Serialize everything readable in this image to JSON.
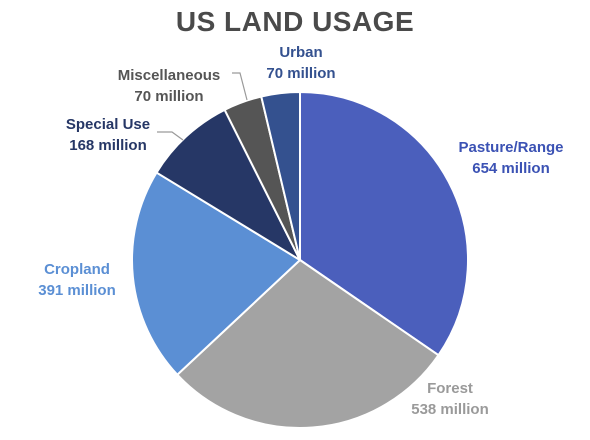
{
  "chart_data": {
    "type": "pie",
    "title": "US LAND USAGE",
    "slices": [
      {
        "label": "Pasture/Range",
        "value_label": "654 million",
        "value": 654,
        "color": "#4b5fbc",
        "label_color": "#3b52b4"
      },
      {
        "label": "Forest",
        "value_label": "538 million",
        "value": 538,
        "color": "#a3a3a3",
        "label_color": "#9a9a9a"
      },
      {
        "label": "Cropland",
        "value_label": "391 million",
        "value": 391,
        "color": "#5b8fd4",
        "label_color": "#5b8fd4"
      },
      {
        "label": "Special Use",
        "value_label": "168 million",
        "value": 168,
        "color": "#263766",
        "label_color": "#263766"
      },
      {
        "label": "Miscellaneous",
        "value_label": "70 million",
        "value": 70,
        "color": "#555555",
        "label_color": "#555555"
      },
      {
        "label": "Urban",
        "value_label": "70 million",
        "value": 70,
        "color": "#34518f",
        "label_color": "#34518f"
      }
    ],
    "unit": "million"
  }
}
